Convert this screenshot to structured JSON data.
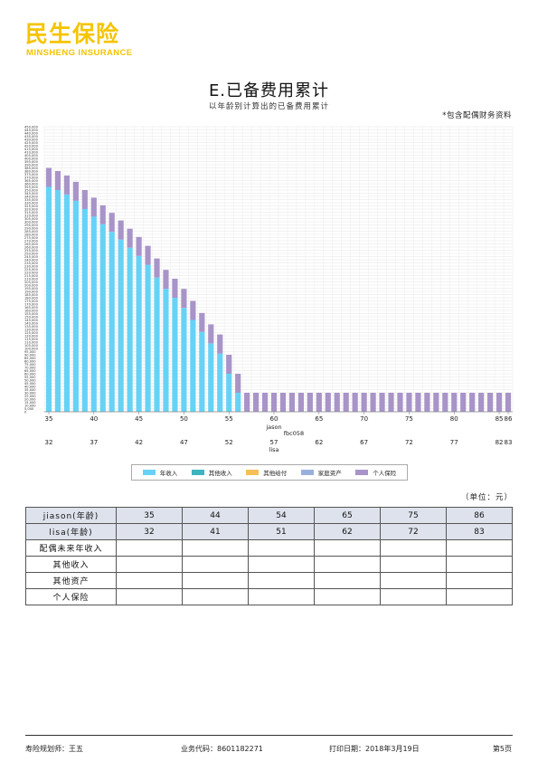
{
  "logo": {
    "cn": "民生保险",
    "en": "MINSHENG INSURANCE"
  },
  "title": "E.已备费用累计",
  "subtitle": "以年龄别计算出的已备费用累计",
  "note": "*包含配偶财务资料",
  "unit": "（单位：元）",
  "colors": {
    "annual_income": "#66d3f6",
    "other_income": "#3fb3c0",
    "other_benefit": "#f6c056",
    "family_assets": "#9ab0dc",
    "personal_insurance": "#a894c8"
  },
  "chart_data": {
    "type": "bar",
    "stacked": true,
    "ylim": [
      0,
      450000
    ],
    "y_ticks": [
      "0",
      "5,000",
      "10,000",
      "15,000",
      "20,000",
      "25,000",
      "30,000",
      "35,000",
      "40,000",
      "45,000",
      "50,000",
      "55,000",
      "60,000",
      "65,000",
      "70,000",
      "75,000",
      "80,000",
      "85,000",
      "90,000",
      "95,000",
      "100,000",
      "105,000",
      "110,000",
      "115,000",
      "120,000",
      "125,000",
      "130,000",
      "135,000",
      "140,000",
      "145,000",
      "150,000",
      "155,000",
      "160,000",
      "165,000",
      "170,000",
      "175,000",
      "180,000",
      "185,000",
      "190,000",
      "195,000",
      "200,000",
      "205,000",
      "210,000",
      "215,000",
      "220,000",
      "225,000",
      "230,000",
      "235,000",
      "240,000",
      "245,000",
      "250,000",
      "255,000",
      "260,000",
      "265,000",
      "270,000",
      "275,000",
      "280,000",
      "285,000",
      "290,000",
      "295,000",
      "300,000",
      "305,000",
      "310,000",
      "315,000",
      "320,000",
      "325,000",
      "330,000",
      "335,000",
      "340,000",
      "345,000",
      "350,000",
      "355,000",
      "360,000",
      "365,000",
      "370,000",
      "375,000",
      "380,000",
      "385,000",
      "390,000",
      "395,000",
      "400,000",
      "405,000",
      "410,000",
      "415,000",
      "420,000",
      "425,000",
      "430,000",
      "435,000",
      "440,000",
      "445,000",
      "450,000"
    ],
    "x": [
      35,
      36,
      37,
      38,
      39,
      40,
      41,
      42,
      43,
      44,
      45,
      46,
      47,
      48,
      49,
      50,
      51,
      52,
      53,
      54,
      55,
      56,
      57,
      58,
      59,
      60,
      61,
      62,
      63,
      64,
      65,
      66,
      67,
      68,
      69,
      70,
      71,
      72,
      73,
      74,
      75,
      76,
      77,
      78,
      79,
      80,
      81,
      82,
      83,
      84,
      85,
      86
    ],
    "x_ticks_primary": [
      35,
      40,
      45,
      50,
      55,
      60,
      65,
      70,
      75,
      80,
      85,
      86
    ],
    "x_ticks_primary_label": "jason",
    "x_ticks_primary_extra": "fbc058",
    "x_ticks_secondary": [
      {
        "age_at": 35,
        "label": "32"
      },
      {
        "age_at": 40,
        "label": "37"
      },
      {
        "age_at": 45,
        "label": "42"
      },
      {
        "age_at": 50,
        "label": "47"
      },
      {
        "age_at": 55,
        "label": "52"
      },
      {
        "age_at": 60,
        "label": "57"
      },
      {
        "age_at": 65,
        "label": "62"
      },
      {
        "age_at": 70,
        "label": "67"
      },
      {
        "age_at": 75,
        "label": "72"
      },
      {
        "age_at": 80,
        "label": "77"
      },
      {
        "age_at": 85,
        "label": "82"
      },
      {
        "age_at": 86,
        "label": "83"
      }
    ],
    "x_ticks_secondary_label": "lisa",
    "series": [
      {
        "name": "年收入",
        "values": [
          355000,
          350000,
          343000,
          333000,
          320000,
          308000,
          296000,
          284000,
          272000,
          259000,
          246000,
          232000,
          212000,
          194000,
          180000,
          164000,
          145000,
          126000,
          108000,
          92000,
          60000,
          30000,
          0,
          0,
          0,
          0,
          0,
          0,
          0,
          0,
          0,
          0,
          0,
          0,
          0,
          0,
          0,
          0,
          0,
          0,
          0,
          0,
          0,
          0,
          0,
          0,
          0,
          0,
          0,
          0,
          0,
          0
        ]
      },
      {
        "name": "其他收入",
        "values": [
          0,
          0,
          0,
          0,
          0,
          0,
          0,
          0,
          0,
          0,
          0,
          0,
          0,
          0,
          0,
          0,
          0,
          0,
          0,
          0,
          0,
          0,
          0,
          0,
          0,
          0,
          0,
          0,
          0,
          0,
          0,
          0,
          0,
          0,
          0,
          0,
          0,
          0,
          0,
          0,
          0,
          0,
          0,
          0,
          0,
          0,
          0,
          0,
          0,
          0,
          0,
          0
        ]
      },
      {
        "name": "其他给付",
        "values": [
          0,
          0,
          0,
          0,
          0,
          0,
          0,
          0,
          0,
          0,
          0,
          0,
          0,
          0,
          0,
          0,
          0,
          0,
          0,
          0,
          0,
          0,
          0,
          0,
          0,
          0,
          0,
          0,
          0,
          0,
          0,
          0,
          0,
          0,
          0,
          0,
          0,
          0,
          0,
          0,
          0,
          0,
          0,
          0,
          0,
          0,
          0,
          0,
          0,
          0,
          0,
          0
        ]
      },
      {
        "name": "家庭资产",
        "values": [
          0,
          0,
          0,
          0,
          0,
          0,
          0,
          0,
          0,
          0,
          0,
          0,
          0,
          0,
          0,
          0,
          0,
          0,
          0,
          0,
          0,
          0,
          0,
          0,
          0,
          0,
          0,
          0,
          0,
          0,
          0,
          0,
          0,
          0,
          0,
          0,
          0,
          0,
          0,
          0,
          0,
          0,
          0,
          0,
          0,
          0,
          0,
          0,
          0,
          0,
          0,
          0
        ]
      },
      {
        "name": "个人保险",
        "values": [
          30000,
          30000,
          30000,
          30000,
          30000,
          30000,
          30000,
          30000,
          30000,
          30000,
          30000,
          30000,
          30000,
          30000,
          30000,
          30000,
          30000,
          30000,
          30000,
          30000,
          30000,
          30000,
          30000,
          30000,
          30000,
          30000,
          30000,
          30000,
          30000,
          30000,
          30000,
          30000,
          30000,
          30000,
          30000,
          30000,
          30000,
          30000,
          30000,
          30000,
          30000,
          30000,
          30000,
          30000,
          30000,
          30000,
          30000,
          30000,
          30000,
          30000,
          30000,
          30000
        ]
      }
    ]
  },
  "table": {
    "rows": [
      {
        "label": "jiason(年龄)",
        "values": [
          "35",
          "44",
          "54",
          "65",
          "75",
          "86"
        ]
      },
      {
        "label": "lisa(年龄)",
        "values": [
          "32",
          "41",
          "51",
          "62",
          "72",
          "83"
        ]
      },
      {
        "label": "配偶未来年收入",
        "values": [
          "",
          "",
          "",
          "",
          "",
          ""
        ]
      },
      {
        "label": "其他收入",
        "values": [
          "",
          "",
          "",
          "",
          "",
          ""
        ]
      },
      {
        "label": "其他资产",
        "values": [
          "",
          "",
          "",
          "",
          "",
          ""
        ]
      },
      {
        "label": "个人保险",
        "values": [
          "",
          "",
          "",
          "",
          "",
          ""
        ]
      }
    ]
  },
  "footer": {
    "planner": "寿险规划师：王五",
    "code": "业务代码：8601182271",
    "print_date": "打印日期：2018年3月19日",
    "page": "第5页"
  }
}
